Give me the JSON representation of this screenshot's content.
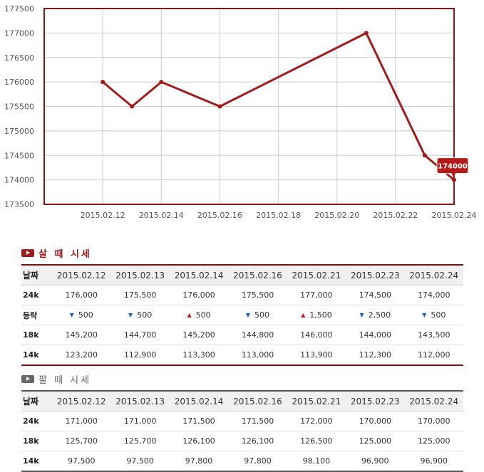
{
  "chart_data": {
    "type": "line",
    "x": [
      "2015.02.12",
      "2015.02.13",
      "2015.02.14",
      "2015.02.16",
      "2015.02.21",
      "2015.02.23",
      "2015.02.24"
    ],
    "values": [
      176000,
      175500,
      176000,
      175500,
      177000,
      174500,
      174000
    ],
    "x_ticks": [
      "2015.02.12",
      "2015.02.14",
      "2015.02.16",
      "2015.02.18",
      "2015.02.20",
      "2015.02.22",
      "2015.02.24"
    ],
    "y_ticks": [
      "177500",
      "177000",
      "176500",
      "176000",
      "175500",
      "175000",
      "174500",
      "174000",
      "173500"
    ],
    "ylim": [
      173500,
      177500
    ],
    "xlim": [
      "2015.02.10",
      "2015.02.24"
    ],
    "grid": true,
    "callout": "174000",
    "colors": {
      "line": "#a11c1c",
      "frame": "#8b1414",
      "grid": "#cccccc"
    }
  },
  "buy": {
    "title": "살 때 시세",
    "headers": [
      "날짜",
      "2015.02.12",
      "2015.02.13",
      "2015.02.14",
      "2015.02.16",
      "2015.02.21",
      "2015.02.23",
      "2015.02.24"
    ],
    "rows": [
      {
        "label": "24k",
        "values": [
          "176,000",
          "175,500",
          "176,000",
          "175,500",
          "177,000",
          "174,500",
          "174,000"
        ]
      },
      {
        "label": "등락",
        "values": [
          "500",
          "500",
          "500",
          "500",
          "1,500",
          "2,500",
          "500"
        ],
        "dirs": [
          "down",
          "down",
          "up",
          "down",
          "up",
          "down",
          "down"
        ]
      },
      {
        "label": "18k",
        "values": [
          "145,200",
          "144,700",
          "145,200",
          "144,800",
          "146,000",
          "144,000",
          "143,500"
        ]
      },
      {
        "label": "14k",
        "values": [
          "123,200",
          "112,900",
          "113,300",
          "113,000",
          "113,900",
          "112,300",
          "112,000"
        ]
      }
    ]
  },
  "sell": {
    "title": "팔 때 시세",
    "headers": [
      "날짜",
      "2015.02.12",
      "2015.02.13",
      "2015.02.14",
      "2015.02.16",
      "2015.02.21",
      "2015.02.23",
      "2015.02.24"
    ],
    "rows": [
      {
        "label": "24k",
        "values": [
          "171,000",
          "171,000",
          "171,500",
          "171,500",
          "172,000",
          "170,000",
          "170,000"
        ]
      },
      {
        "label": "18k",
        "values": [
          "125,700",
          "125,700",
          "126,100",
          "126,100",
          "126,500",
          "125,000",
          "125,000"
        ]
      },
      {
        "label": "14k",
        "values": [
          "97,500",
          "97,500",
          "97,800",
          "97,800",
          "98,100",
          "96,900",
          "96,900"
        ]
      }
    ]
  }
}
